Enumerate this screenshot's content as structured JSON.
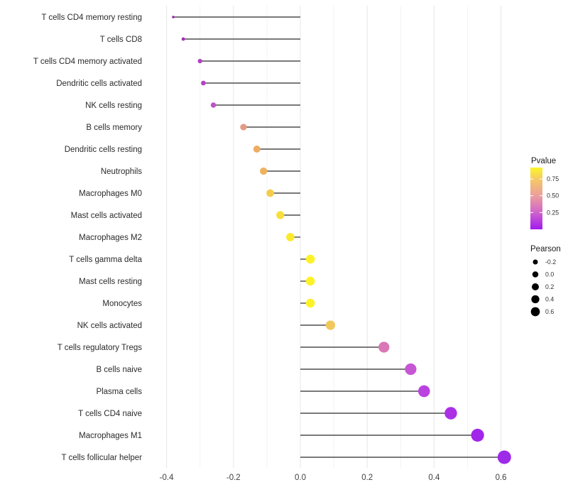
{
  "chart_data": {
    "type": "lollipop",
    "title": "",
    "xlabel": "",
    "ylabel": "",
    "x_tick_values": [
      -0.4,
      -0.2,
      0.0,
      0.2,
      0.4,
      0.6
    ],
    "x_tick_labels": [
      "-0.4",
      "-0.2",
      "0.0",
      "0.2",
      "0.4",
      "0.6"
    ],
    "x_minor_tick_values": [
      -0.3,
      -0.1,
      0.1,
      0.3,
      0.5
    ],
    "xlim": [
      -0.43,
      0.66
    ],
    "grid": "vertical-only",
    "baseline_value": 0.0,
    "rows": [
      {
        "label": "T cells CD4 memory resting",
        "pearson": -0.38,
        "dot_color": "#9A23A9"
      },
      {
        "label": "T cells CD8",
        "pearson": -0.35,
        "dot_color": "#A72FB9"
      },
      {
        "label": "T cells CD4 memory activated",
        "pearson": -0.3,
        "dot_color": "#B341C6"
      },
      {
        "label": "Dendritic cells activated",
        "pearson": -0.29,
        "dot_color": "#B442C5"
      },
      {
        "label": "NK cells resting",
        "pearson": -0.26,
        "dot_color": "#BF52C6"
      },
      {
        "label": "B cells memory",
        "pearson": -0.17,
        "dot_color": "#E39B85"
      },
      {
        "label": "Dendritic cells resting",
        "pearson": -0.13,
        "dot_color": "#EDAD62"
      },
      {
        "label": "Neutrophils",
        "pearson": -0.11,
        "dot_color": "#EEB25F"
      },
      {
        "label": "Macrophages M0",
        "pearson": -0.09,
        "dot_color": "#F5CC4A"
      },
      {
        "label": "Mast cells activated",
        "pearson": -0.06,
        "dot_color": "#F8DE38"
      },
      {
        "label": "Macrophages M2",
        "pearson": -0.03,
        "dot_color": "#FBEA2D"
      },
      {
        "label": "T cells gamma delta",
        "pearson": 0.03,
        "dot_color": "#FCF226"
      },
      {
        "label": "Mast cells resting",
        "pearson": 0.03,
        "dot_color": "#FCF226"
      },
      {
        "label": "Monocytes",
        "pearson": 0.03,
        "dot_color": "#FCF226"
      },
      {
        "label": "NK cells activated",
        "pearson": 0.09,
        "dot_color": "#F0C85E"
      },
      {
        "label": "T cells regulatory  Tregs",
        "pearson": 0.25,
        "dot_color": "#D977B7"
      },
      {
        "label": "B cells naive",
        "pearson": 0.33,
        "dot_color": "#C756D4"
      },
      {
        "label": "Plasma cells",
        "pearson": 0.37,
        "dot_color": "#BA42DF"
      },
      {
        "label": "T cells CD4 naive",
        "pearson": 0.45,
        "dot_color": "#AC2FE6"
      },
      {
        "label": "Macrophages M1",
        "pearson": 0.53,
        "dot_color": "#A226EA"
      },
      {
        "label": "T cells follicular helper",
        "pearson": 0.61,
        "dot_color": "#9D2BE8"
      }
    ],
    "legend": {
      "color": {
        "title": "Pvalue",
        "tick_labels": [
          "0.75",
          "0.50",
          "0.25"
        ],
        "tick_values": [
          0.75,
          0.5,
          0.25
        ],
        "value_range": [
          0.0,
          0.92
        ],
        "gradient_top_to_bottom": [
          "#FBF626",
          "#F5CB63",
          "#EC9D9E",
          "#D066C9",
          "#A21AF0"
        ],
        "gradient_stop_percents": [
          0,
          18,
          46,
          72,
          100
        ]
      },
      "size": {
        "title": "Pearson",
        "entries": [
          {
            "label": "-0.2",
            "value": -0.2
          },
          {
            "label": "0.0",
            "value": 0.0
          },
          {
            "label": "0.2",
            "value": 0.2
          },
          {
            "label": "0.4",
            "value": 0.4
          },
          {
            "label": "0.6",
            "value": 0.6
          }
        ],
        "dot_color": "#000000"
      }
    }
  },
  "colors": {
    "background": "#ffffff",
    "stem": "#4d4d4d",
    "grid_major": "#e7e7e7",
    "grid_minor": "#f3f3f3",
    "axis_text": "#404040",
    "y_label_text": "#2b2b2b",
    "legend_title_text": "#1a1a1a",
    "legend_tick_text": "#333333"
  }
}
